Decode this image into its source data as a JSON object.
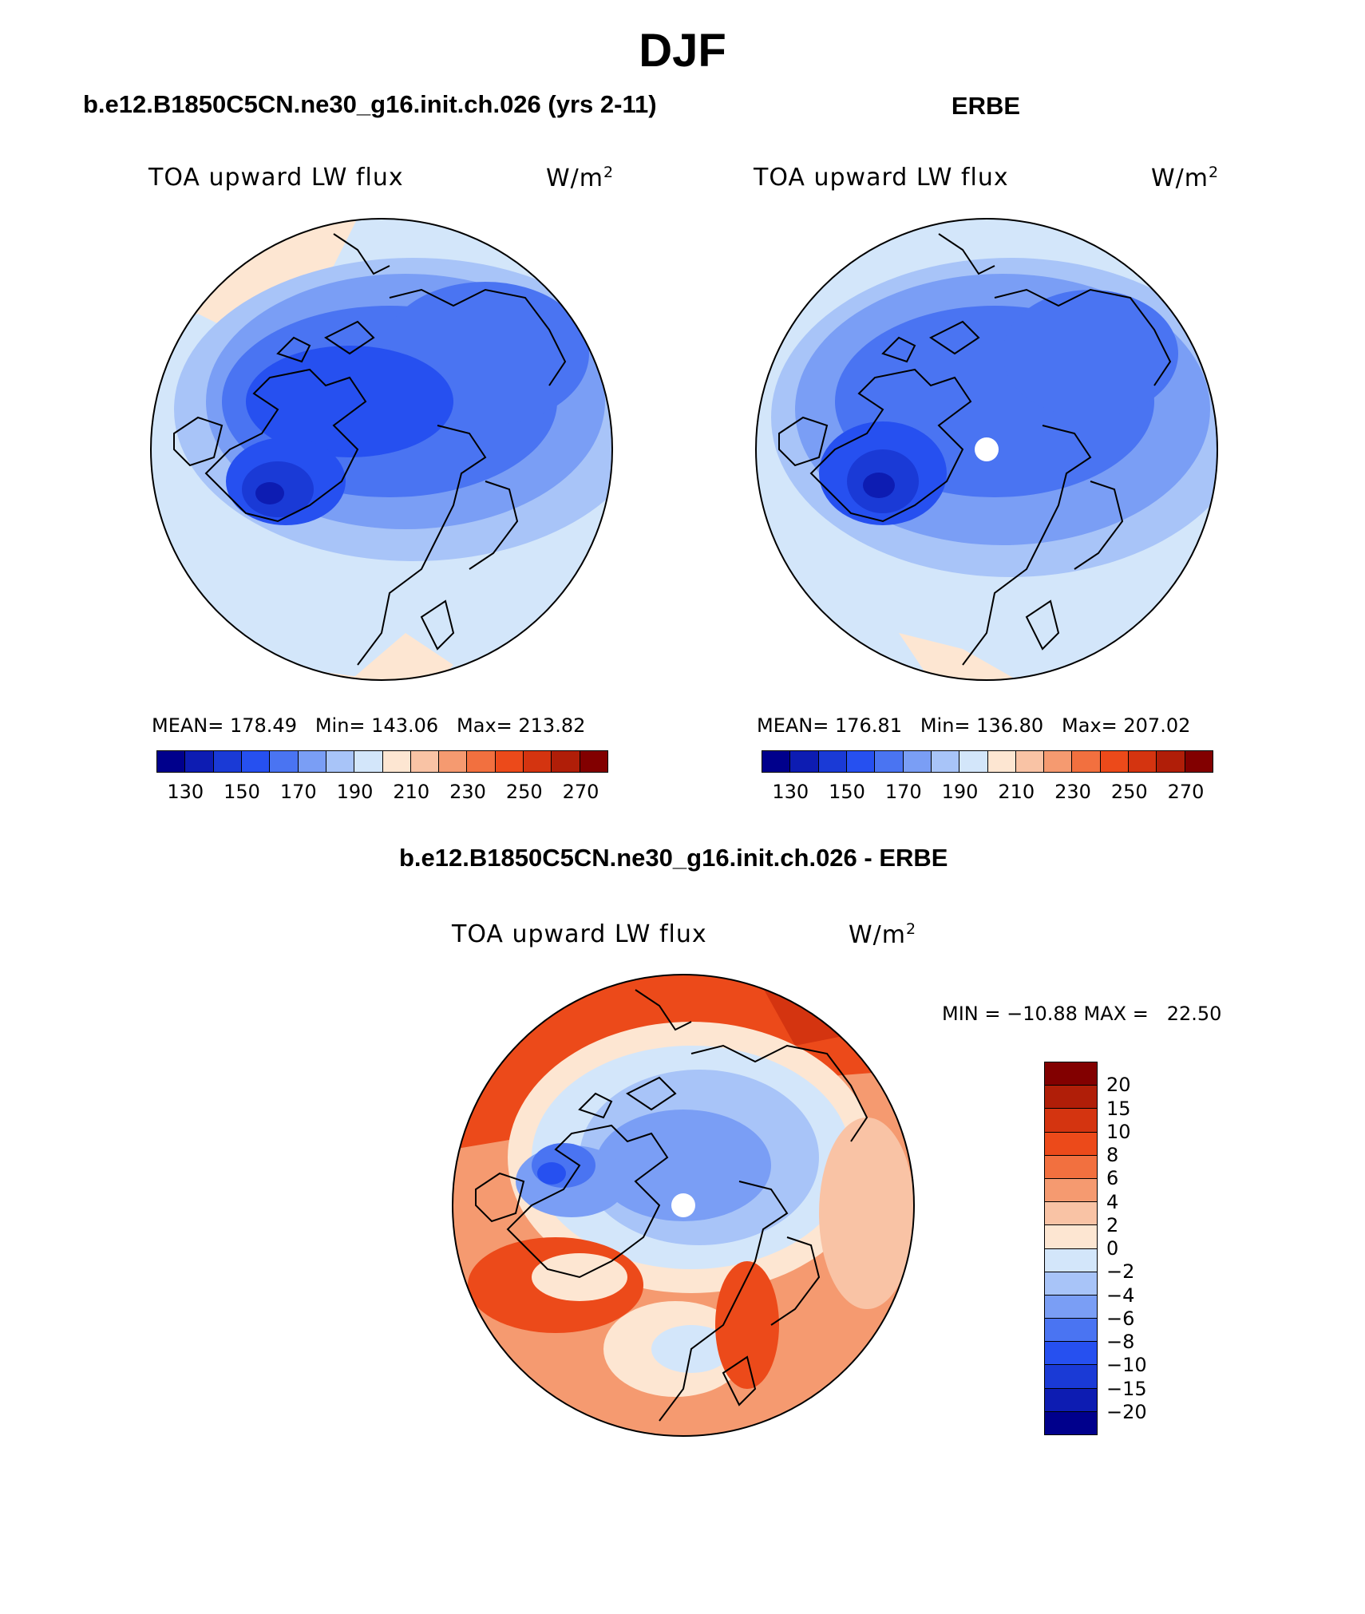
{
  "figure_title": "DJF",
  "panels": [
    {
      "title": "b.e12.B1850C5CN.ne30_g16.init.ch.026 (yrs 2-11)",
      "variable": "TOA upward LW flux",
      "units": "W/m",
      "units_sup": "2",
      "stats": "MEAN= 178.49   Min= 143.06   Max= 213.82"
    },
    {
      "title": "ERBE",
      "variable": "TOA upward LW flux",
      "units": "W/m",
      "units_sup": "2",
      "stats": "MEAN= 176.81   Min= 136.80   Max= 207.02"
    },
    {
      "title": "b.e12.B1850C5CN.ne30_g16.init.ch.026 - ERBE",
      "variable": "TOA upward LW flux",
      "units": "W/m",
      "units_sup": "2",
      "stats": "MIN = −10.88 MAX =   22.50"
    }
  ],
  "colorbar_abs": {
    "colors": [
      "#00008c",
      "#0d1cb2",
      "#1a3ad6",
      "#2650f0",
      "#4a74f2",
      "#7a9ef5",
      "#a8c4f8",
      "#d3e6fa",
      "#fde6d2",
      "#f9c3a5",
      "#f59a70",
      "#f2703f",
      "#ec4a1a",
      "#d43410",
      "#b01e08",
      "#820000"
    ],
    "tick_labels": [
      "130",
      "150",
      "170",
      "190",
      "210",
      "230",
      "250",
      "270"
    ]
  },
  "colorbar_diff": {
    "colors": [
      "#820000",
      "#b01e08",
      "#d43410",
      "#ec4a1a",
      "#f2703f",
      "#f59a70",
      "#f9c3a5",
      "#fde6d2",
      "#d3e6fa",
      "#a8c4f8",
      "#7a9ef5",
      "#4a74f2",
      "#2650f0",
      "#1a3ad6",
      "#0d1cb2",
      "#00008c"
    ],
    "tick_labels": [
      "20",
      "15",
      "10",
      "8",
      "6",
      "4",
      "2",
      "0",
      "−2",
      "−4",
      "−6",
      "−8",
      "−10",
      "−15",
      "−20"
    ]
  }
}
